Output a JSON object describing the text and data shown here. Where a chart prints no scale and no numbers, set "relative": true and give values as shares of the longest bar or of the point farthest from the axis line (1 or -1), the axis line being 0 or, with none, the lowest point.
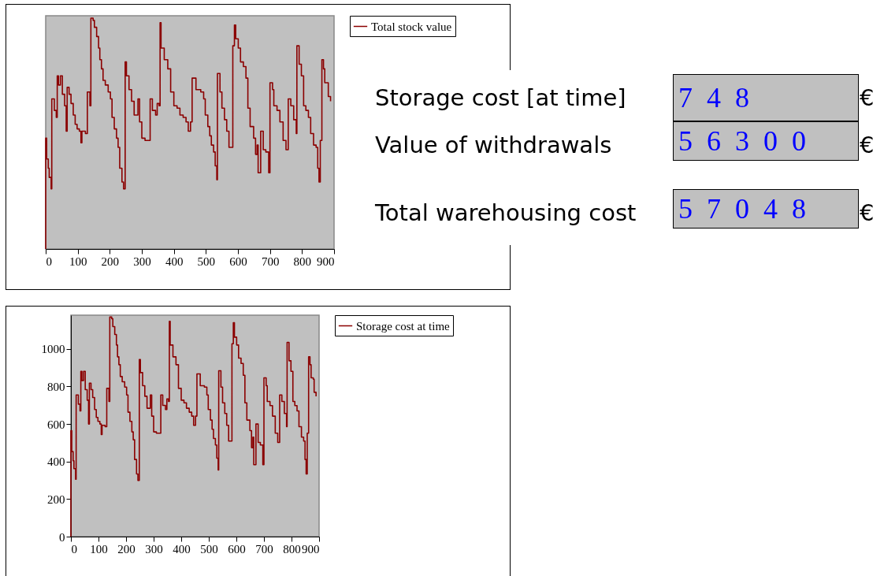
{
  "chart_data": [
    {
      "type": "step",
      "relative": true,
      "xlim": [
        0,
        900
      ],
      "xticks": [
        0,
        100,
        200,
        300,
        400,
        500,
        600,
        700,
        800,
        900
      ],
      "tick_labels": "x",
      "legend": "right",
      "grid": false,
      "x": [
        0,
        0,
        3,
        8,
        11,
        17,
        19,
        27,
        33,
        36,
        40,
        46,
        52,
        59,
        64,
        67,
        73,
        79,
        86,
        92,
        98,
        105,
        110,
        113,
        124,
        130,
        138,
        141,
        148,
        152,
        159,
        165,
        169,
        174,
        179,
        186,
        195,
        202,
        207,
        214,
        221,
        226,
        231,
        238,
        243,
        248,
        252,
        260,
        268,
        276,
        288,
        293,
        300,
        310,
        324,
        326,
        333,
        343,
        348,
        354,
        357,
        360,
        370,
        381,
        390,
        400,
        410,
        419,
        429,
        438,
        445,
        452,
        457,
        469,
        484,
        493,
        498,
        506,
        512,
        517,
        524,
        529,
        534,
        536,
        544,
        550,
        558,
        565,
        572,
        582,
        584,
        589,
        593,
        601,
        608,
        617,
        625,
        631,
        638,
        649,
        655,
        660,
        663,
        671,
        679,
        687,
        696,
        700,
        708,
        712,
        722,
        731,
        741,
        750,
        757,
        765,
        774,
        782,
        784,
        791,
        798,
        805,
        812,
        820,
        827,
        836,
        844,
        849,
        853,
        857,
        862,
        867,
        871,
        879,
        882,
        889
      ],
      "series": [
        {
          "name": "Total stock value",
          "color": "#8b0000",
          "values": [
            0,
            0.48,
            0.39,
            0.35,
            0.31,
            0.26,
            0.65,
            0.6,
            0.57,
            0.75,
            0.71,
            0.75,
            0.67,
            0.62,
            0.51,
            0.7,
            0.67,
            0.63,
            0.58,
            0.54,
            0.52,
            0.51,
            0.46,
            0.51,
            0.5,
            0.68,
            0.62,
            1,
            0.99,
            0.96,
            0.92,
            0.87,
            0.82,
            0.78,
            0.73,
            0.71,
            0.68,
            0.65,
            0.57,
            0.52,
            0.48,
            0.44,
            0.35,
            0.29,
            0.26,
            0.81,
            0.75,
            0.69,
            0.64,
            0.58,
            0.65,
            0.55,
            0.48,
            0.47,
            0.47,
            0.65,
            0.6,
            0.58,
            0.63,
            0.62,
            0.98,
            0.87,
            0.82,
            0.78,
            0.68,
            0.62,
            0.61,
            0.58,
            0.57,
            0.55,
            0.51,
            0.55,
            0.74,
            0.69,
            0.68,
            0.65,
            0.58,
            0.53,
            0.49,
            0.45,
            0.42,
            0.36,
            0.3,
            0.76,
            0.68,
            0.61,
            0.56,
            0.51,
            0.44,
            0.44,
            0.88,
            0.97,
            0.91,
            0.87,
            0.81,
            0.79,
            0.74,
            0.61,
            0.53,
            0.48,
            0.41,
            0.45,
            0.33,
            0.51,
            0.43,
            0.42,
            0.33,
            0.72,
            0.69,
            0.62,
            0.6,
            0.55,
            0.47,
            0.43,
            0.65,
            0.62,
            0.56,
            0.5,
            0.88,
            0.8,
            0.75,
            0.62,
            0.6,
            0.57,
            0.5,
            0.45,
            0.44,
            0.35,
            0.29,
            0.47,
            0.82,
            0.78,
            0.72,
            0.72,
            0.66,
            0.64
          ]
        }
      ]
    },
    {
      "type": "other",
      "annotations": [
        "Storage cost [at time]",
        "748",
        "€",
        "Value of withdrawals",
        "56300",
        "€",
        "Total warehousing cost",
        "57048",
        "€"
      ]
    },
    {
      "type": "step",
      "xlim": [
        0,
        900
      ],
      "xticks": [
        0,
        100,
        200,
        300,
        400,
        500,
        600,
        700,
        800,
        900
      ],
      "ylim": [
        0,
        1180
      ],
      "yticks": [
        0,
        200,
        400,
        600,
        800,
        1000
      ],
      "legend": "right",
      "grid": false,
      "x": [
        0,
        0,
        3,
        8,
        11,
        17,
        19,
        27,
        33,
        36,
        40,
        46,
        52,
        59,
        64,
        67,
        73,
        79,
        86,
        92,
        98,
        105,
        110,
        113,
        124,
        130,
        138,
        141,
        148,
        152,
        159,
        165,
        169,
        174,
        179,
        186,
        195,
        202,
        207,
        214,
        221,
        226,
        231,
        238,
        243,
        248,
        252,
        260,
        268,
        276,
        288,
        293,
        300,
        310,
        324,
        326,
        333,
        343,
        348,
        354,
        357,
        360,
        370,
        381,
        390,
        400,
        410,
        419,
        429,
        438,
        445,
        452,
        457,
        469,
        484,
        493,
        498,
        506,
        512,
        517,
        524,
        529,
        534,
        536,
        544,
        550,
        558,
        565,
        572,
        582,
        584,
        589,
        593,
        601,
        608,
        617,
        625,
        631,
        638,
        649,
        655,
        660,
        663,
        671,
        679,
        687,
        696,
        700,
        708,
        712,
        722,
        731,
        741,
        750,
        757,
        765,
        774,
        782,
        784,
        791,
        798,
        805,
        812,
        820,
        827,
        836,
        844,
        849,
        853,
        857,
        862,
        867,
        871,
        879,
        882,
        889
      ],
      "series": [
        {
          "name": "Storage cost at time",
          "color": "#8b0000",
          "values": [
            0,
            565,
            453,
            404,
            362,
            306,
            755,
            706,
            670,
            881,
            832,
            881,
            783,
            727,
            600,
            818,
            783,
            741,
            677,
            635,
            614,
            600,
            544,
            593,
            586,
            790,
            720,
            1170,
            1161,
            1119,
            1077,
            1021,
            958,
            916,
            853,
            825,
            797,
            755,
            663,
            614,
            558,
            516,
            411,
            334,
            299,
            944,
            874,
            804,
            748,
            684,
            755,
            642,
            558,
            551,
            551,
            755,
            699,
            677,
            734,
            720,
            1147,
            1021,
            958,
            916,
            790,
            727,
            713,
            684,
            663,
            642,
            593,
            642,
            867,
            804,
            797,
            755,
            677,
            621,
            572,
            523,
            488,
            418,
            355,
            884,
            797,
            713,
            656,
            593,
            509,
            509,
            1028,
            1140,
            1063,
            1021,
            951,
            923,
            860,
            713,
            621,
            565,
            474,
            530,
            383,
            600,
            502,
            488,
            383,
            846,
            804,
            720,
            698,
            642,
            551,
            502,
            755,
            720,
            656,
            586,
            1035,
            937,
            881,
            720,
            698,
            670,
            586,
            530,
            509,
            411,
            334,
            551,
            958,
            916,
            846,
            839,
            769,
            748
          ]
        }
      ]
    }
  ]
}
